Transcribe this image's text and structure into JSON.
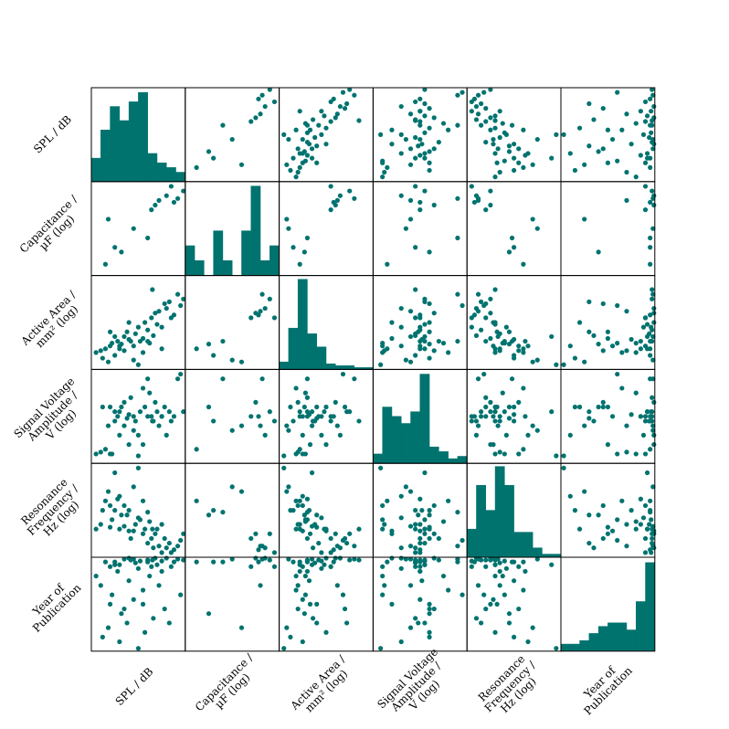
{
  "chart_data": {
    "type": "scatter_matrix",
    "color": "#00736f",
    "variables": [
      {
        "label": [
          "SPL / dB"
        ],
        "lim": [
          0,
          1
        ],
        "values": [
          0.05,
          0.1,
          0.15,
          0.2,
          0.22,
          0.25,
          0.28,
          0.3,
          0.32,
          0.35,
          0.38,
          0.4,
          0.42,
          0.45,
          0.47,
          0.5,
          0.52,
          0.55,
          0.57,
          0.6,
          0.62,
          0.64,
          0.66,
          0.68,
          0.7,
          0.72,
          0.75,
          0.78,
          0.8,
          0.83,
          0.88,
          0.92,
          0.95,
          0.98,
          0.12,
          0.18,
          0.35,
          0.45,
          0.55,
          0.3,
          0.6,
          0.75,
          0.65,
          0.25,
          0.4,
          0.5,
          0.2,
          0.85
        ],
        "hist": {
          "bins": [
            0,
            0.1,
            0.2,
            0.3,
            0.4,
            0.5,
            0.6,
            0.7,
            0.8,
            0.9,
            1
          ],
          "counts": [
            5,
            11,
            16,
            13,
            17,
            19,
            6,
            4,
            3,
            2
          ],
          "ylim": [
            0,
            20
          ]
        }
      },
      {
        "label": [
          "Capacitance /",
          "µF (log)"
        ],
        "lim": [
          0,
          1
        ],
        "values": [
          null,
          null,
          0.12,
          null,
          null,
          0.3,
          null,
          null,
          0.25,
          null,
          null,
          null,
          null,
          null,
          null,
          null,
          null,
          null,
          null,
          null,
          null,
          0.7,
          null,
          0.75,
          null,
          0.8,
          null,
          null,
          0.85,
          null,
          0.78,
          0.82,
          null,
          0.9,
          null,
          0.6,
          null,
          0.5,
          null,
          null,
          0.4,
          null,
          null,
          null,
          null,
          null,
          null,
          0.95
        ],
        "hist": {
          "bins": [
            0,
            0.1,
            0.2,
            0.3,
            0.4,
            0.5,
            0.6,
            0.7,
            0.8,
            0.9,
            1
          ],
          "counts": [
            2,
            1,
            0,
            3,
            1,
            0,
            3,
            6,
            1,
            2
          ],
          "ylim": [
            0,
            6.3
          ]
        }
      },
      {
        "label": [
          "Active Area /",
          "mm² (log)"
        ],
        "lim": [
          0,
          1
        ],
        "values": [
          0.18,
          0.2,
          0.22,
          0.25,
          0.28,
          0.15,
          0.3,
          0.22,
          0.27,
          0.35,
          0.4,
          0.32,
          0.3,
          0.25,
          0.38,
          0.45,
          0.3,
          0.33,
          0.5,
          0.42,
          0.28,
          0.55,
          0.36,
          0.6,
          0.48,
          0.62,
          0.45,
          0.7,
          0.65,
          0.72,
          0.58,
          0.8,
          0.68,
          0.75,
          0.12,
          0.08,
          0.2,
          0.1,
          0.18,
          0.25,
          0.3,
          0.22,
          0.85,
          0.35,
          0.5,
          0.05,
          0.4,
          0.55
        ],
        "hist": {
          "bins": [
            0,
            0.1,
            0.2,
            0.3,
            0.4,
            0.5,
            0.6,
            0.7,
            0.8,
            0.9,
            1
          ],
          "counts": [
            4,
            22,
            48,
            19,
            12,
            3,
            2,
            2,
            1,
            1
          ],
          "ylim": [
            0,
            50
          ]
        }
      },
      {
        "label": [
          "Signal Voltage",
          "Amplitude /",
          "V (log)"
        ],
        "lim": [
          0,
          1
        ],
        "values": [
          0.1,
          0.12,
          0.15,
          0.1,
          0.1,
          0.45,
          0.5,
          0.55,
          0.6,
          0.4,
          0.48,
          0.52,
          0.7,
          0.5,
          0.45,
          0.3,
          0.55,
          0.2,
          0.6,
          0.5,
          0.75,
          0.5,
          0.45,
          0.65,
          0.55,
          0.4,
          0.5,
          0.6,
          0.3,
          0.55,
          0.5,
          0.9,
          0.95,
          0.55,
          0.6,
          0.4,
          0.65,
          0.35,
          0.8,
          0.3,
          0.9,
          0.5,
          0.45,
          0.55,
          0.2,
          0.08,
          0.6,
          0.45
        ],
        "hist": {
          "bins": [
            0,
            0.1,
            0.2,
            0.3,
            0.4,
            0.5,
            0.6,
            0.7,
            0.8,
            0.9,
            1
          ],
          "counts": [
            4,
            24,
            20,
            17,
            22,
            38,
            7,
            5,
            2,
            3
          ],
          "ylim": [
            0,
            40
          ]
        }
      },
      {
        "label": [
          "Resonance",
          "Frequency /",
          "Hz (log)"
        ],
        "lim": [
          0,
          1
        ],
        "values": [
          0.3,
          0.35,
          0.6,
          0.55,
          0.4,
          0.5,
          0.62,
          0.3,
          0.45,
          0.33,
          0.45,
          0.5,
          0.2,
          0.28,
          0.35,
          0.42,
          0.4,
          0.25,
          0.3,
          0.15,
          0.38,
          0.2,
          0.1,
          0.25,
          0.3,
          0.12,
          0.05,
          0.2,
          0.1,
          0.15,
          0.08,
          0.12,
          0.18,
          0.25,
          0.5,
          0.7,
          0.55,
          0.75,
          0.6,
          0.65,
          0.48,
          0.35,
          0.3,
          0.9,
          0.28,
          0.95,
          0.32,
          0.05
        ],
        "hist": {
          "bins": [
            0,
            0.1,
            0.2,
            0.3,
            0.4,
            0.5,
            0.6,
            0.7,
            0.8,
            0.9,
            1
          ],
          "counts": [
            9,
            23,
            15,
            29,
            23,
            8,
            8,
            3,
            1,
            1
          ],
          "ylim": [
            0,
            30
          ]
        }
      },
      {
        "label": [
          "Year of",
          "Publication"
        ],
        "lim": [
          0,
          1
        ],
        "values": [
          0.8,
          0.7,
          0.95,
          0.9,
          0.6,
          0.95,
          0.85,
          0.92,
          0.4,
          0.98,
          0.3,
          0.75,
          0.97,
          0.55,
          0.94,
          0.88,
          0.96,
          0.5,
          0.2,
          0.97,
          0.8,
          0.9,
          0.35,
          0.99,
          0.92,
          0.7,
          0.96,
          0.45,
          0.99,
          0.3,
          0.95,
          0.98,
          0.6,
          0.97,
          0.15,
          0.25,
          0.45,
          0.98,
          0.65,
          0.1,
          0.95,
          0.85,
          0.97,
          0.92,
          0.99,
          0.03,
          0.5,
          0.9
        ],
        "hist": {
          "bins": [
            0,
            0.1,
            0.2,
            0.3,
            0.4,
            0.5,
            0.6,
            0.7,
            0.8,
            0.9,
            1
          ],
          "counts": [
            2,
            2,
            3,
            5,
            7,
            8,
            8,
            6,
            14,
            25
          ],
          "ylim": [
            0,
            26.5
          ]
        }
      }
    ]
  }
}
